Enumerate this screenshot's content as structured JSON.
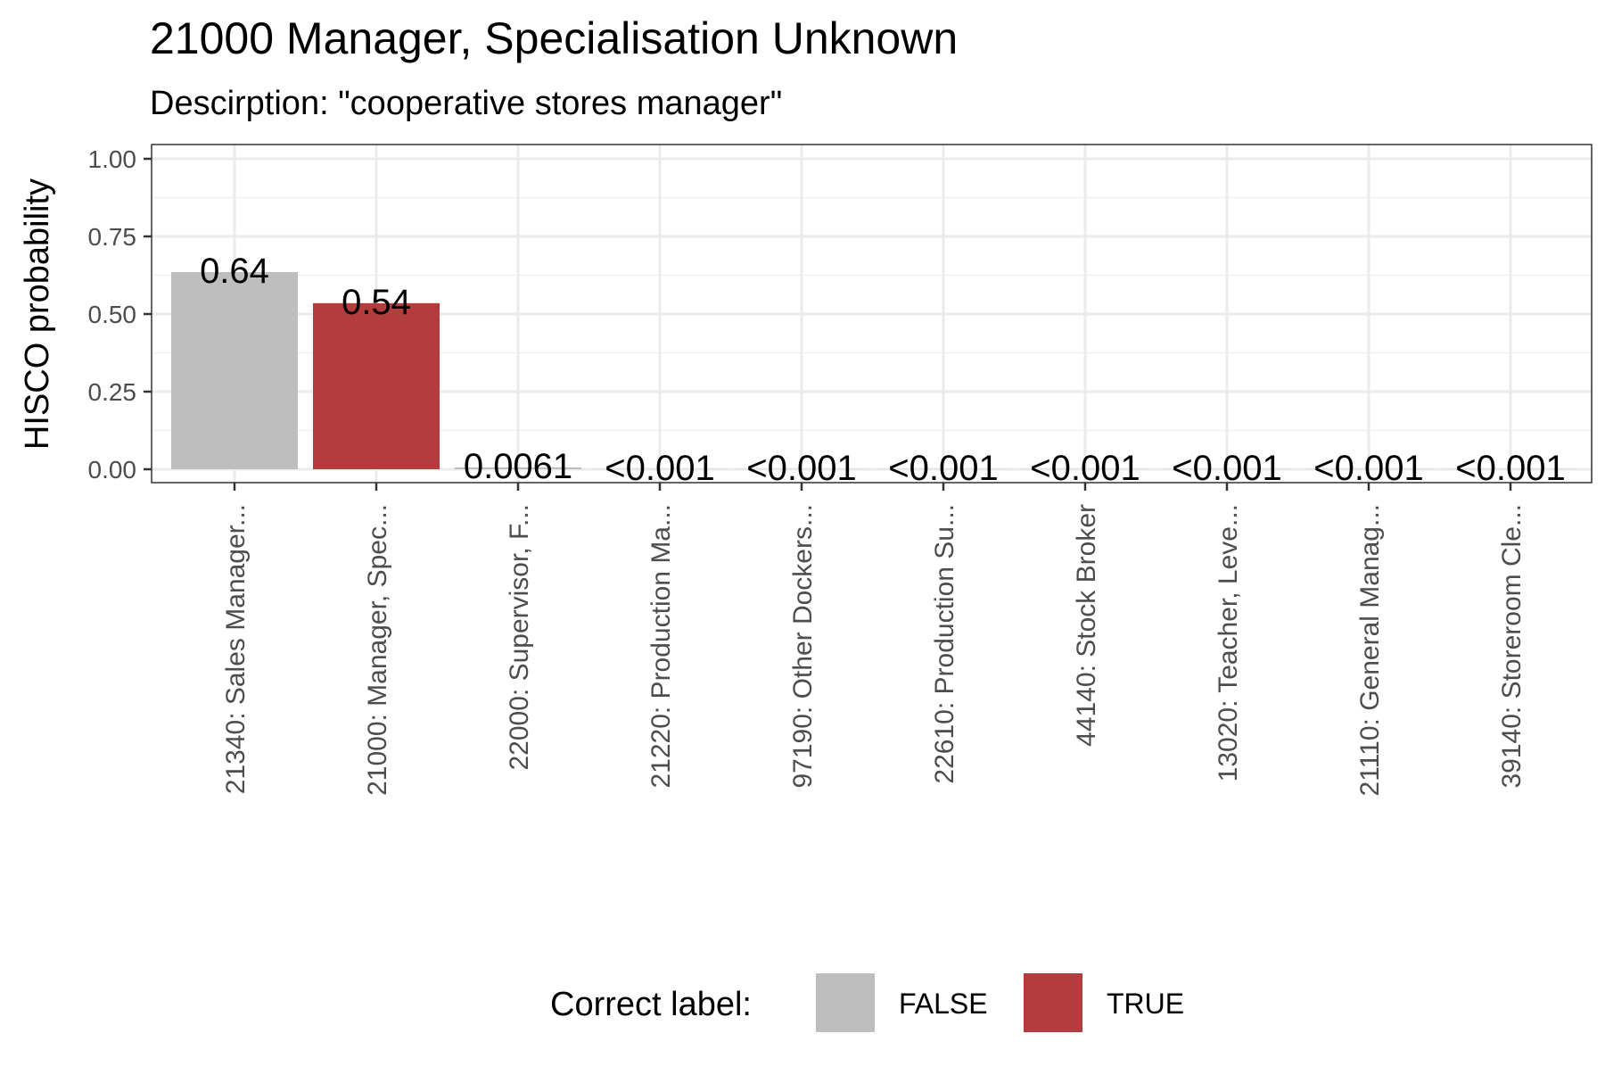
{
  "chart_data": {
    "type": "bar",
    "title": "21000 Manager, Specialisation Unknown",
    "subtitle": "Descirption: \"cooperative stores manager\"",
    "ylabel": "HISCO probability",
    "xlabel": "",
    "ylim": [
      0,
      1.05
    ],
    "yticks": [
      0.0,
      0.25,
      0.5,
      0.75,
      1.0
    ],
    "ytick_labels": [
      "0.00",
      "0.25",
      "0.50",
      "0.75",
      "1.00"
    ],
    "grid": true,
    "legend_position": "bottom",
    "categories": [
      "21340: Sales Manager...",
      "21000: Manager, Spec...",
      "22000: Supervisor, F...",
      "21220: Production Ma...",
      "97190: Other Dockers...",
      "22610: Production Su...",
      "44140: Stock Broker",
      "13020: Teacher, Leve...",
      "21110: General Manag...",
      "39140: Storeroom Cle..."
    ],
    "values": [
      0.635,
      0.535,
      0.0061,
      0.0005,
      0.0005,
      0.0005,
      0.0005,
      0.0005,
      0.0005,
      0.0005
    ],
    "data_labels": [
      "0.64",
      "0.54",
      "0.0061",
      "<0.001",
      "<0.001",
      "<0.001",
      "<0.001",
      "<0.001",
      "<0.001",
      "<0.001"
    ],
    "correct": [
      false,
      true,
      false,
      false,
      false,
      false,
      false,
      false,
      false,
      false
    ],
    "legend": {
      "title": "Correct label:",
      "items": [
        {
          "label": "FALSE",
          "color": "#bebebe"
        },
        {
          "label": "TRUE",
          "color": "#b33d3d"
        }
      ]
    }
  }
}
